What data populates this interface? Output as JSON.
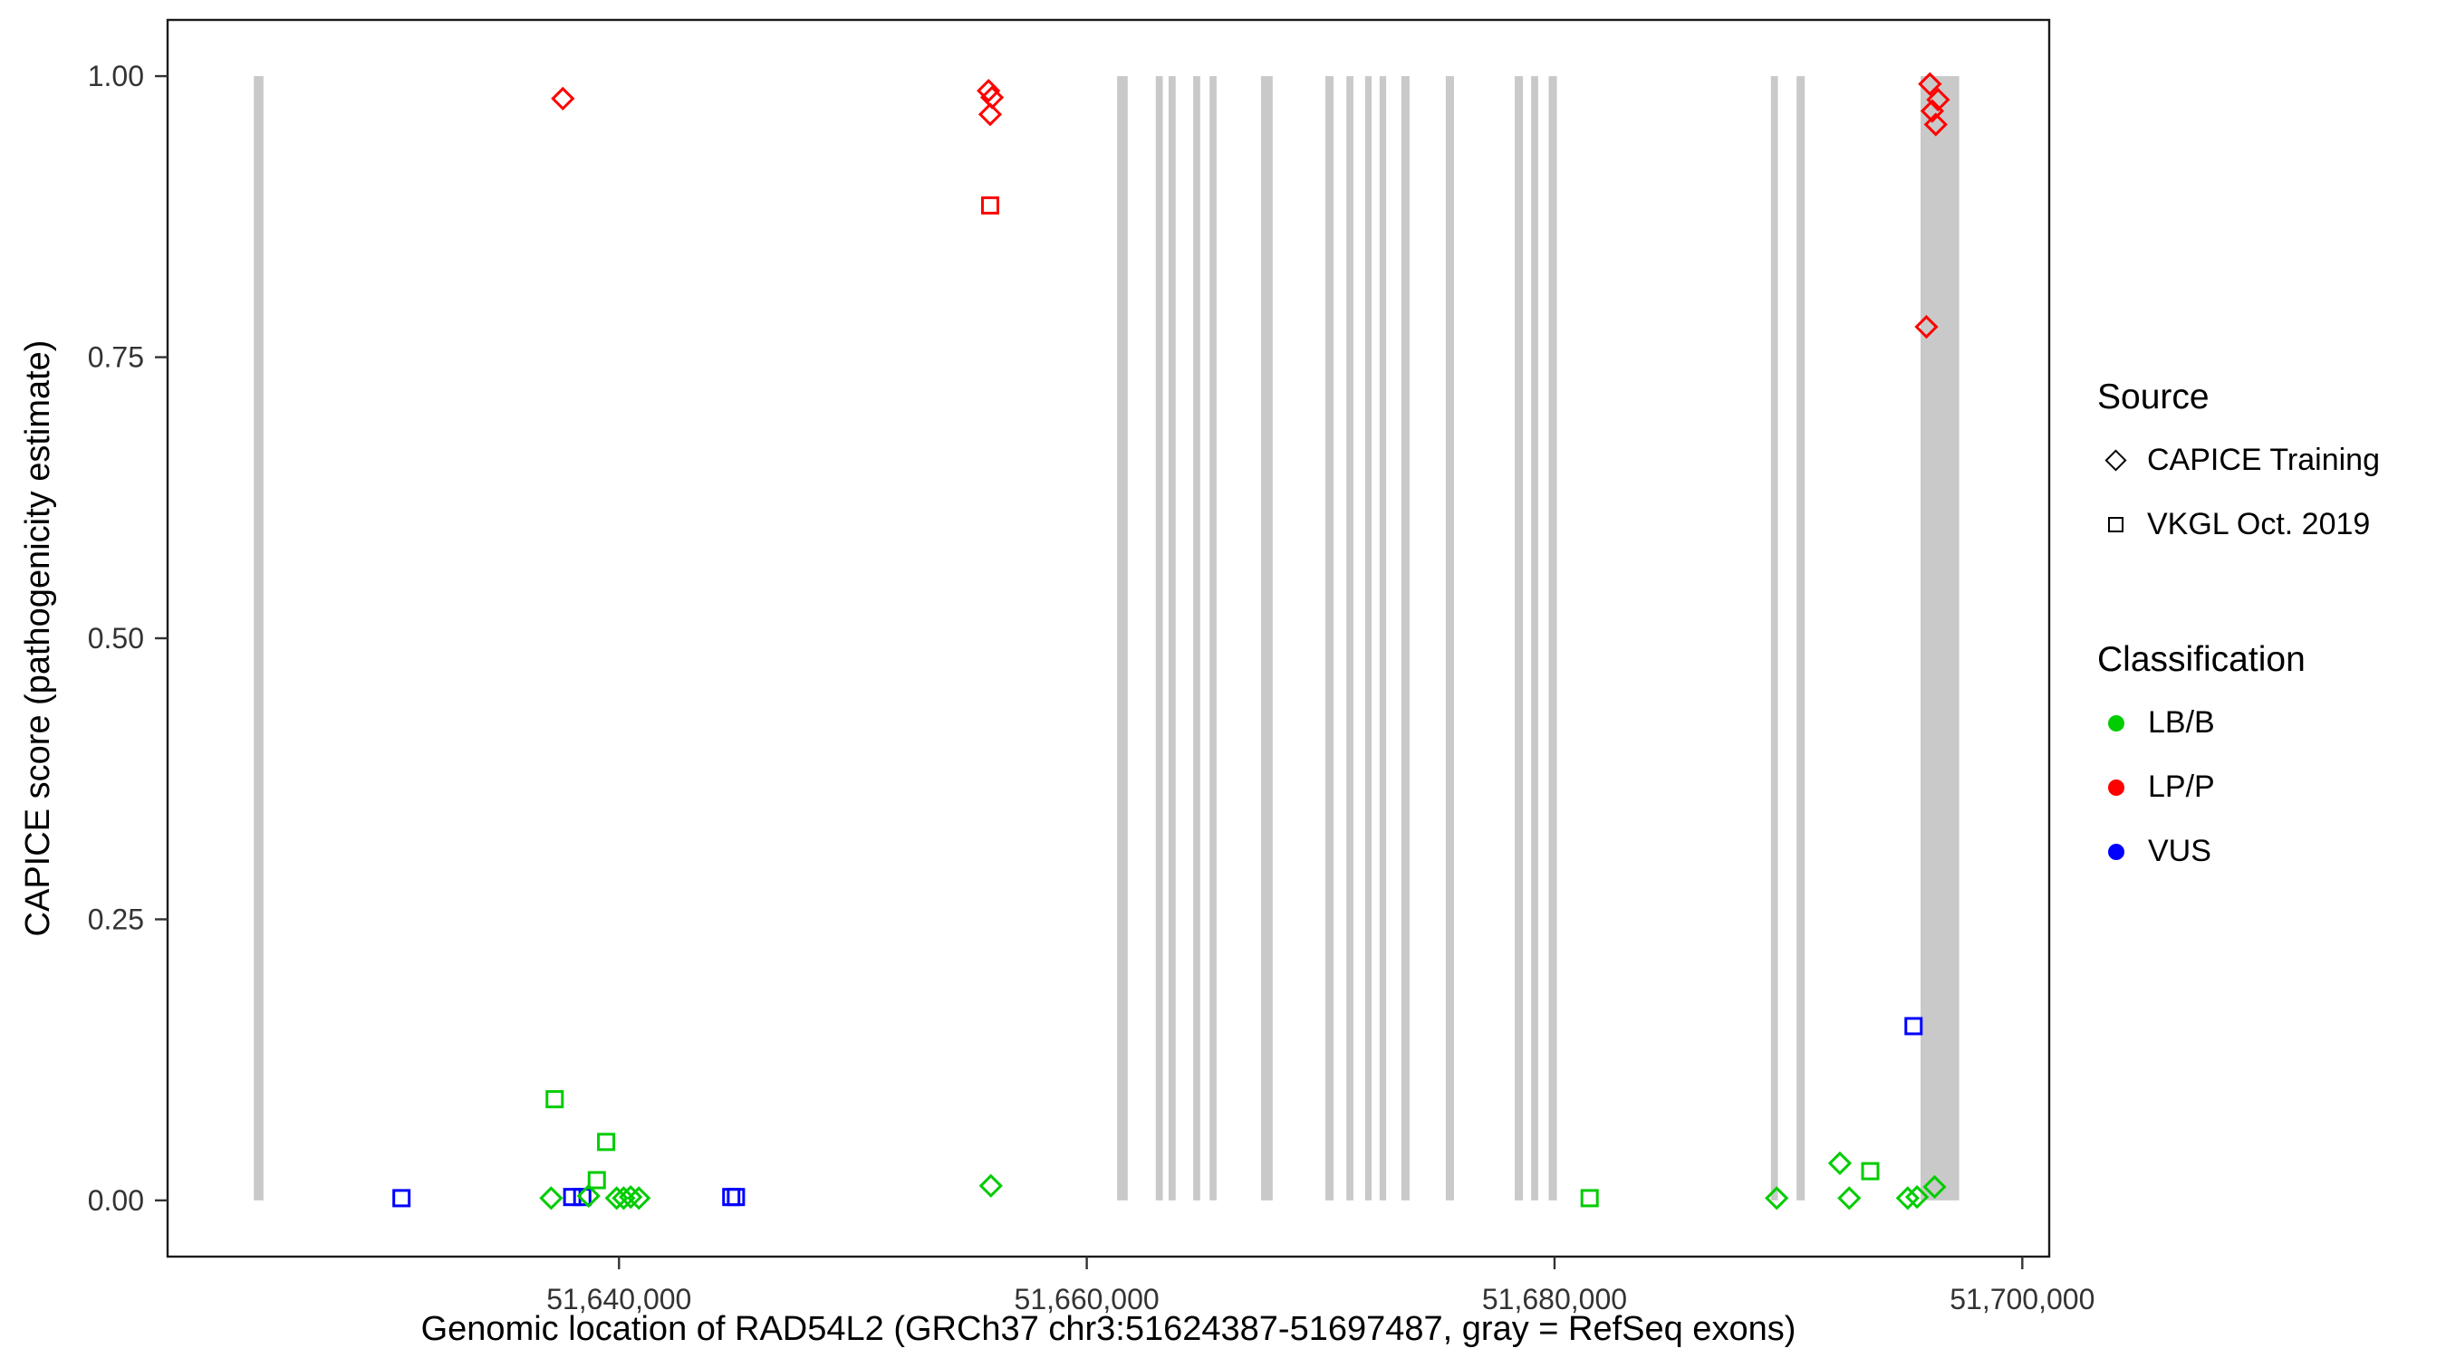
{
  "figure": {
    "x_axis_title": "Genomic location of RAD54L2 (GRCh37 chr3:51624387-51697487, gray = RefSeq exons)",
    "y_axis_title": "CAPICE score (pathogenicity estimate)"
  },
  "legend": {
    "source": {
      "title": "Source",
      "items": [
        {
          "label": "CAPICE Training",
          "glyph": "diamond"
        },
        {
          "label": "VKGL Oct. 2019",
          "glyph": "square"
        }
      ]
    },
    "classification": {
      "title": "Classification",
      "items": [
        {
          "label": "LB/B",
          "color": "#00CC00"
        },
        {
          "label": "LP/P",
          "color": "#FF0000"
        },
        {
          "label": "VUS",
          "color": "#0000FF"
        }
      ]
    }
  },
  "chart_data": {
    "type": "scatter",
    "title": "",
    "xlabel": "Genomic location of RAD54L2 (GRCh37 chr3:51624387-51697487, gray = RefSeq exons)",
    "ylabel": "CAPICE score (pathogenicity estimate)",
    "x_domain": [
      51620700,
      51701150
    ],
    "y_domain": [
      -0.05,
      1.05
    ],
    "x_ticks": [
      {
        "value": 51640000,
        "label": "51,640,000"
      },
      {
        "value": 51660000,
        "label": "51,660,000"
      },
      {
        "value": 51680000,
        "label": "51,680,000"
      },
      {
        "value": 51700000,
        "label": "51,700,000"
      }
    ],
    "y_ticks": [
      {
        "value": 0.0,
        "label": "0.00"
      },
      {
        "value": 0.25,
        "label": "0.25"
      },
      {
        "value": 0.5,
        "label": "0.50"
      },
      {
        "value": 0.75,
        "label": "0.75"
      },
      {
        "value": 1.0,
        "label": "1.00"
      }
    ],
    "colors": {
      "LB/B": "#00CC00",
      "LP/P": "#FF0000",
      "VUS": "#0000FF",
      "exon": "#C9C9C9"
    },
    "shapes": {
      "CAPICE Training": "diamond",
      "VKGL Oct. 2019": "square"
    },
    "exon_y_range": [
      0,
      1
    ],
    "exons": [
      [
        51624387,
        51624800
      ],
      [
        51661300,
        51661750
      ],
      [
        51662950,
        51663250
      ],
      [
        51663500,
        51663800
      ],
      [
        51664550,
        51664850
      ],
      [
        51665250,
        51665550
      ],
      [
        51667450,
        51667950
      ],
      [
        51670200,
        51670550
      ],
      [
        51671100,
        51671400
      ],
      [
        51671900,
        51672180
      ],
      [
        51672520,
        51672800
      ],
      [
        51673450,
        51673800
      ],
      [
        51675350,
        51675700
      ],
      [
        51678300,
        51678650
      ],
      [
        51679000,
        51679300
      ],
      [
        51679750,
        51680100
      ],
      [
        51689250,
        51689550
      ],
      [
        51690350,
        51690700
      ],
      [
        51695650,
        51697300
      ]
    ],
    "points": [
      {
        "x": 51637600,
        "y": 0.98,
        "source": "CAPICE Training",
        "classification": "LP/P"
      },
      {
        "x": 51655800,
        "y": 0.987,
        "source": "CAPICE Training",
        "classification": "LP/P"
      },
      {
        "x": 51655950,
        "y": 0.981,
        "source": "CAPICE Training",
        "classification": "LP/P"
      },
      {
        "x": 51655870,
        "y": 0.966,
        "source": "CAPICE Training",
        "classification": "LP/P"
      },
      {
        "x": 51696050,
        "y": 0.993,
        "source": "CAPICE Training",
        "classification": "LP/P"
      },
      {
        "x": 51696400,
        "y": 0.979,
        "source": "CAPICE Training",
        "classification": "LP/P"
      },
      {
        "x": 51696150,
        "y": 0.969,
        "source": "CAPICE Training",
        "classification": "LP/P"
      },
      {
        "x": 51696300,
        "y": 0.957,
        "source": "CAPICE Training",
        "classification": "LP/P"
      },
      {
        "x": 51695900,
        "y": 0.777,
        "source": "CAPICE Training",
        "classification": "LP/P"
      },
      {
        "x": 51655870,
        "y": 0.885,
        "source": "VKGL Oct. 2019",
        "classification": "LP/P"
      },
      {
        "x": 51630700,
        "y": 0.002,
        "source": "VKGL Oct. 2019",
        "classification": "VUS"
      },
      {
        "x": 51638000,
        "y": 0.003,
        "source": "VKGL Oct. 2019",
        "classification": "VUS"
      },
      {
        "x": 51638430,
        "y": 0.003,
        "source": "VKGL Oct. 2019",
        "classification": "VUS"
      },
      {
        "x": 51644800,
        "y": 0.003,
        "source": "VKGL Oct. 2019",
        "classification": "VUS"
      },
      {
        "x": 51645000,
        "y": 0.003,
        "source": "VKGL Oct. 2019",
        "classification": "VUS"
      },
      {
        "x": 51695350,
        "y": 0.155,
        "source": "VKGL Oct. 2019",
        "classification": "VUS"
      },
      {
        "x": 51637250,
        "y": 0.09,
        "source": "VKGL Oct. 2019",
        "classification": "LB/B"
      },
      {
        "x": 51639450,
        "y": 0.052,
        "source": "VKGL Oct. 2019",
        "classification": "LB/B"
      },
      {
        "x": 51639050,
        "y": 0.018,
        "source": "VKGL Oct. 2019",
        "classification": "LB/B"
      },
      {
        "x": 51681500,
        "y": 0.002,
        "source": "VKGL Oct. 2019",
        "classification": "LB/B"
      },
      {
        "x": 51693500,
        "y": 0.026,
        "source": "VKGL Oct. 2019",
        "classification": "LB/B"
      },
      {
        "x": 51637100,
        "y": 0.002,
        "source": "CAPICE Training",
        "classification": "LB/B"
      },
      {
        "x": 51638700,
        "y": 0.004,
        "source": "CAPICE Training",
        "classification": "LB/B"
      },
      {
        "x": 51639900,
        "y": 0.002,
        "source": "CAPICE Training",
        "classification": "LB/B"
      },
      {
        "x": 51640200,
        "y": 0.002,
        "source": "CAPICE Training",
        "classification": "LB/B"
      },
      {
        "x": 51640500,
        "y": 0.003,
        "source": "CAPICE Training",
        "classification": "LB/B"
      },
      {
        "x": 51640850,
        "y": 0.002,
        "source": "CAPICE Training",
        "classification": "LB/B"
      },
      {
        "x": 51655900,
        "y": 0.013,
        "source": "CAPICE Training",
        "classification": "LB/B"
      },
      {
        "x": 51689500,
        "y": 0.002,
        "source": "CAPICE Training",
        "classification": "LB/B"
      },
      {
        "x": 51692200,
        "y": 0.033,
        "source": "CAPICE Training",
        "classification": "LB/B"
      },
      {
        "x": 51692600,
        "y": 0.002,
        "source": "CAPICE Training",
        "classification": "LB/B"
      },
      {
        "x": 51695100,
        "y": 0.002,
        "source": "CAPICE Training",
        "classification": "LB/B"
      },
      {
        "x": 51695500,
        "y": 0.003,
        "source": "CAPICE Training",
        "classification": "LB/B"
      },
      {
        "x": 51696250,
        "y": 0.012,
        "source": "CAPICE Training",
        "classification": "LB/B"
      }
    ]
  }
}
